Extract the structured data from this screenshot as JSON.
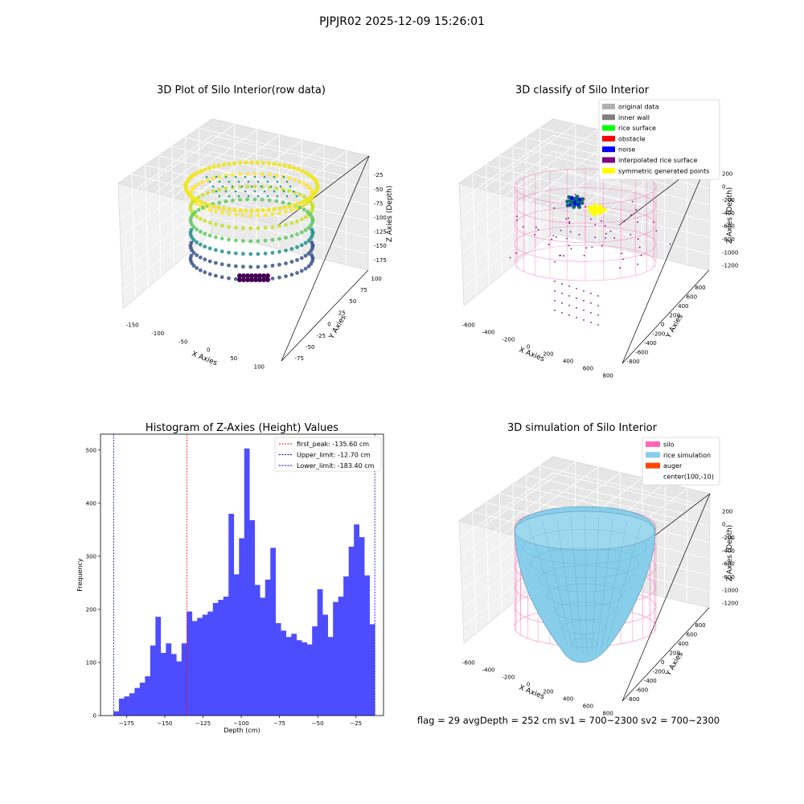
{
  "figure": {
    "suptitle": "PJPJR02 2025-12-09 15:26:01",
    "footer": "flag = 29  avgDepth = 252 cm  sv1 = 700~2300  sv2 = 700~2300"
  },
  "colors": {
    "histogram_bar": "#4d4dff",
    "first_peak": "#ff0000",
    "limits": "#0000b0",
    "silo": "#ff69b4",
    "rice_simulation": "#87ceeb",
    "auger": "#ff4500",
    "original_data": "#b0b0b0",
    "inner_wall": "#808080",
    "rice_surface": "#00ff00",
    "obstacle": "#ff0000",
    "noise": "#0000ff",
    "interpolated_rice_surface": "#800080",
    "symmetric_generated_points": "#ffff00"
  },
  "chart_data": [
    {
      "type": "scatter",
      "projection": "3d",
      "title": "3D Plot of Silo Interior(row data)",
      "xlabel": "X Axies",
      "ylabel": "Y Axies",
      "zlabel": "Z Axies (Depth)",
      "x_ticks": [
        "-150",
        "-100",
        "-50",
        "0",
        "50",
        "100"
      ],
      "y_ticks": [
        "-75",
        "-50",
        "-25",
        "0",
        "25",
        "50",
        "75",
        "100"
      ],
      "z_ticks": [
        "-25",
        "-50",
        "-75",
        "-100",
        "-125",
        "-150",
        "-175"
      ],
      "colormap": "viridis",
      "grid": true
    },
    {
      "type": "scatter",
      "projection": "3d",
      "title": "3D classify of Silo Interior",
      "xlabel": "X Axies",
      "ylabel": "Y Axies",
      "zlabel": "Z Axies (Depth)",
      "x_ticks": [
        "-600",
        "-400",
        "-200",
        "0",
        "200",
        "400",
        "600",
        "800"
      ],
      "y_ticks": [
        "800",
        "600",
        "400",
        "200",
        "0",
        "-200",
        "-400",
        "-600",
        "-800"
      ],
      "z_ticks": [
        "200",
        "0",
        "-200",
        "-400",
        "-600",
        "-800",
        "-1000",
        "-1200"
      ],
      "legend": [
        "original data",
        "inner wall",
        "rice surface",
        "obstacle",
        "noise",
        "interpolated rice surface",
        "symmetric generated points"
      ],
      "legend_placement": "top-right",
      "grid": true
    },
    {
      "type": "bar",
      "title": "Histogram of Z-Axies (Height) Values",
      "xlabel": "Depth (cm)",
      "ylabel": "Frequency",
      "xlim": [
        -192,
        -7
      ],
      "ylim": [
        0,
        530
      ],
      "x_ticks": [
        -175,
        -150,
        -125,
        -100,
        -75,
        -50,
        -25
      ],
      "y_ticks": [
        0,
        100,
        200,
        300,
        400,
        500
      ],
      "bin_start": -183.4,
      "bin_width": 3.414,
      "values": [
        8,
        32,
        36,
        42,
        52,
        62,
        74,
        132,
        186,
        118,
        136,
        116,
        102,
        136,
        196,
        178,
        184,
        190,
        196,
        212,
        218,
        224,
        380,
        266,
        334,
        503,
        368,
        246,
        222,
        256,
        316,
        174,
        160,
        148,
        154,
        142,
        138,
        134,
        168,
        238,
        190,
        148,
        214,
        224,
        262,
        318,
        360,
        336,
        264,
        172
      ],
      "legend": [
        "first_peak: -135.60 cm",
        "Upper_limit: -12.70 cm",
        "Lower_limit: -183.40 cm"
      ],
      "legend_placement": "top-right",
      "vlines": [
        {
          "x": -135.6,
          "role": "first_peak"
        },
        {
          "x": -12.7,
          "role": "upper_limit"
        },
        {
          "x": -183.4,
          "role": "lower_limit"
        }
      ]
    },
    {
      "type": "surface",
      "projection": "3d",
      "title": "3D simulation of Silo Interior",
      "xlabel": "X Axies",
      "ylabel": "Y Axies",
      "zlabel": "Z Axies (Depth)",
      "x_ticks": [
        "-600",
        "-400",
        "-200",
        "0",
        "200",
        "400",
        "600",
        "800"
      ],
      "y_ticks": [
        "800",
        "600",
        "400",
        "200",
        "0",
        "-200",
        "-400",
        "-600",
        "-800"
      ],
      "z_ticks": [
        "200",
        "0",
        "-200",
        "-400",
        "-600",
        "-800",
        "-1000",
        "-1200"
      ],
      "legend": [
        "silo",
        "rice simulation",
        "auger",
        "center(100,-10)"
      ],
      "legend_placement": "top-right",
      "grid": true
    }
  ]
}
